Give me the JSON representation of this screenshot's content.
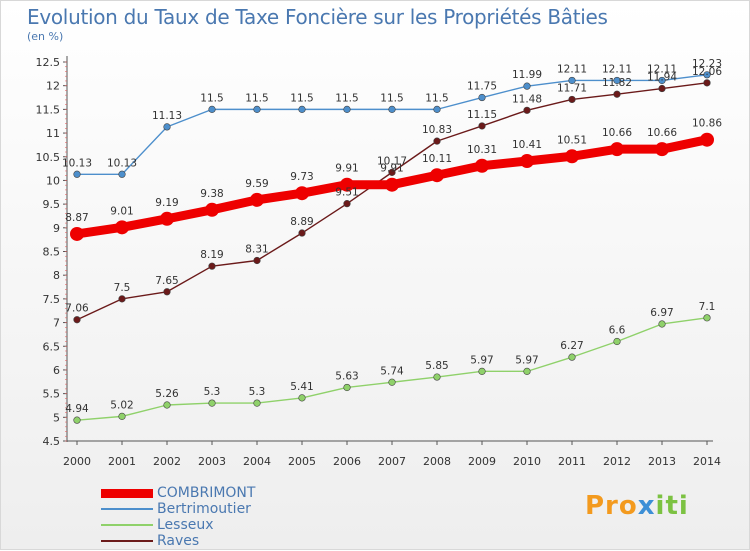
{
  "header": {
    "title": "Evolution du Taux de Taxe Foncière sur les Propriétés Bâties",
    "unit": "(en %)"
  },
  "logo": {
    "text": "Proxiti"
  },
  "chart_data": {
    "type": "line",
    "x": [
      2000,
      2001,
      2002,
      2003,
      2004,
      2005,
      2006,
      2007,
      2008,
      2009,
      2010,
      2011,
      2012,
      2013,
      2014
    ],
    "ylim": [
      4.5,
      12.5
    ],
    "yticks": [
      "4.5",
      "5",
      "5.5",
      "6",
      "6.5",
      "7",
      "7.5",
      "8",
      "8.5",
      "9",
      "9.5",
      "10",
      "10.5",
      "11",
      "11.5",
      "12",
      "12.5"
    ],
    "grid": false,
    "legend_position": "bottom-left",
    "series": [
      {
        "name": "COMBRIMONT",
        "color": "#ee0000",
        "values": [
          8.87,
          9.01,
          9.19,
          9.38,
          9.59,
          9.73,
          9.91,
          9.91,
          10.11,
          10.31,
          10.41,
          10.51,
          10.66,
          10.66,
          10.86
        ]
      },
      {
        "name": "Bertrimoutier",
        "color": "#4d8fcc",
        "values": [
          10.13,
          10.13,
          11.13,
          11.5,
          11.5,
          11.5,
          11.5,
          11.5,
          11.5,
          11.75,
          11.99,
          12.11,
          12.11,
          12.11,
          12.23
        ]
      },
      {
        "name": "Lesseux",
        "color": "#8fd16a",
        "values": [
          4.94,
          5.02,
          5.26,
          5.3,
          5.3,
          5.41,
          5.63,
          5.74,
          5.85,
          5.97,
          5.97,
          6.27,
          6.6,
          6.97,
          7.1
        ]
      },
      {
        "name": "Raves",
        "color": "#6b1a1a",
        "values": [
          7.06,
          7.5,
          7.65,
          8.19,
          8.31,
          8.89,
          9.51,
          10.17,
          10.83,
          11.15,
          11.48,
          11.71,
          11.82,
          11.94,
          12.06
        ]
      }
    ],
    "labels": {
      "COMBRIMONT": [
        "8.87",
        "9.01",
        "9.19",
        "9.38",
        "9.59",
        "9.73",
        "9.91",
        "9.91",
        "10.11",
        "10.31",
        "10.41",
        "10.51",
        "10.66",
        "10.66",
        "10.86"
      ],
      "Bertrimoutier": [
        "10.13",
        "10.13",
        "11.13",
        "11.5",
        "11.5",
        "11.5",
        "11.5",
        "11.5",
        "11.5",
        "11.75",
        "11.99",
        "12.11",
        "12.11",
        "12.11",
        "12.23"
      ],
      "Lesseux": [
        "4.94",
        "5.02",
        "5.26",
        "5.3",
        "5.3",
        "5.41",
        "5.63",
        "5.74",
        "5.85",
        "5.97",
        "5.97",
        "6.27",
        "6.6",
        "6.97",
        "7.1"
      ],
      "Raves": [
        "7.06",
        "7.5",
        "7.65",
        "8.19",
        "8.31",
        "8.89",
        "9.51",
        "10.17",
        "10.83",
        "11.15",
        "11.48",
        "11.71",
        "11.82",
        "11.94",
        "12.06"
      ]
    }
  }
}
